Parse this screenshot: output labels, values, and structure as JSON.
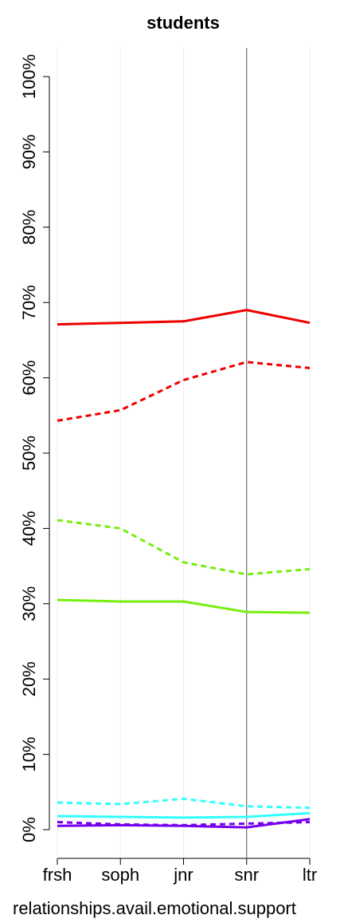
{
  "chart_data": {
    "type": "line",
    "title": "students",
    "xlabel": "relationships.avail.emotional.support",
    "categories": [
      "frsh",
      "soph",
      "jnr",
      "snr",
      "ltr"
    ],
    "series": [
      {
        "color": "#ee0000",
        "dashed": false,
        "values": [
          67.1,
          67.3,
          67.5,
          69.0,
          67.3
        ]
      },
      {
        "color": "#ee0000",
        "dashed": true,
        "values": [
          54.3,
          55.7,
          59.7,
          62.1,
          61.3
        ]
      },
      {
        "color": "#77ee11",
        "dashed": true,
        "values": [
          41.1,
          40.0,
          35.5,
          33.9,
          34.6
        ]
      },
      {
        "color": "#77ee11",
        "dashed": false,
        "values": [
          30.5,
          30.3,
          30.3,
          28.9,
          28.8
        ]
      },
      {
        "color": "#33ffff",
        "dashed": true,
        "values": [
          3.6,
          3.4,
          4.1,
          3.1,
          2.9
        ]
      },
      {
        "color": "#33ffff",
        "dashed": false,
        "values": [
          1.8,
          1.7,
          1.6,
          1.7,
          2.2
        ]
      },
      {
        "color": "#7700ee",
        "dashed": true,
        "values": [
          1.0,
          0.7,
          0.6,
          0.8,
          1.0
        ]
      },
      {
        "color": "#7700ee",
        "dashed": false,
        "values": [
          0.5,
          0.6,
          0.5,
          0.3,
          1.4
        ]
      }
    ],
    "ylim": [
      0,
      100
    ],
    "yticks": [
      {
        "value": 0,
        "label": "0%"
      },
      {
        "value": 10,
        "label": "10%"
      },
      {
        "value": 20,
        "label": "20%"
      },
      {
        "value": 30,
        "label": "30%"
      },
      {
        "value": 40,
        "label": "40%"
      },
      {
        "value": 50,
        "label": "50%"
      },
      {
        "value": 60,
        "label": "60%"
      },
      {
        "value": 70,
        "label": "70%"
      },
      {
        "value": 80,
        "label": "80%"
      },
      {
        "value": 90,
        "label": "90%"
      },
      {
        "value": 100,
        "label": "100%"
      }
    ],
    "grid": true,
    "vline": "snr"
  }
}
